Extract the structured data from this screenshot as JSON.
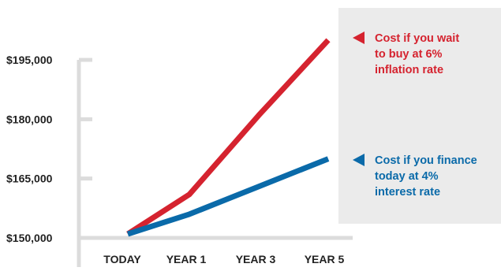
{
  "chart_data": {
    "type": "line",
    "categories": [
      "TODAY",
      "YEAR 1",
      "YEAR 3",
      "YEAR 5"
    ],
    "y_ticks": [
      "$150,000",
      "$165,000",
      "$180,000",
      "$195,000"
    ],
    "y_tick_values": [
      150000,
      165000,
      180000,
      195000
    ],
    "ylim": [
      150000,
      195000
    ],
    "grid": false,
    "legend_position": "right",
    "series": [
      {
        "name_lines": [
          "Cost if you wait",
          "to buy at 6%",
          "inflation rate"
        ],
        "color": "#d5232f",
        "x": [
          0,
          1,
          3,
          5
        ],
        "values": [
          151000,
          161000,
          181000,
          200000
        ]
      },
      {
        "name_lines": [
          "Cost if you finance",
          "today at 4%",
          "interest rate"
        ],
        "color": "#0a6aa9",
        "x": [
          0,
          1,
          3,
          5
        ],
        "values": [
          151000,
          156000,
          163000,
          170000
        ]
      }
    ]
  },
  "colors": {
    "axis": "#dcdcdc",
    "legend_panel": "#ebebeb",
    "label_text": "#222222"
  }
}
